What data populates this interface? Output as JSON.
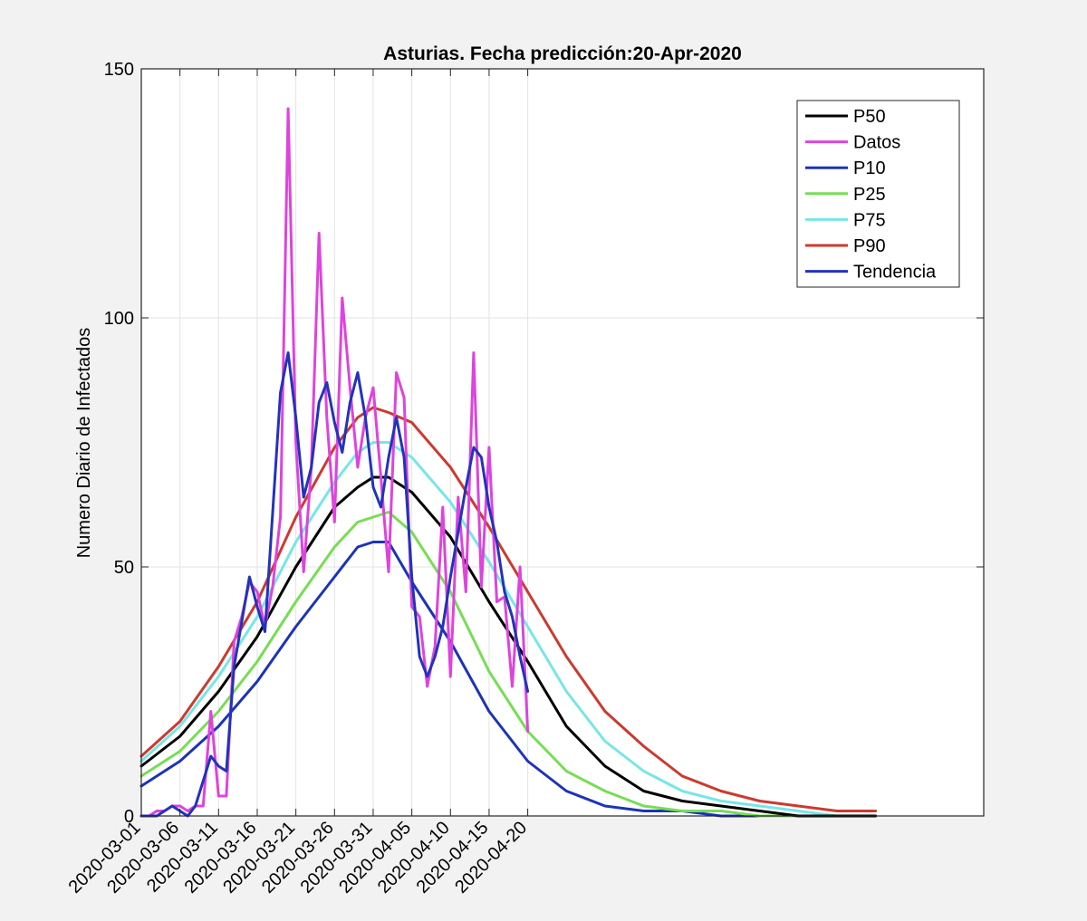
{
  "chart_data": {
    "type": "line",
    "title": "Asturias. Fecha predicción:20-Apr-2020",
    "xlabel": "",
    "ylabel": "Numero Diario de Infectados",
    "ylim": [
      0,
      150
    ],
    "yticks": [
      0,
      50,
      100,
      150
    ],
    "xlim": [
      "2020-03-01",
      "2020-06-18"
    ],
    "xticks": [
      "2020-03-01",
      "2020-03-06",
      "2020-03-11",
      "2020-03-16",
      "2020-03-21",
      "2020-03-26",
      "2020-03-31",
      "2020-04-05",
      "2020-04-10",
      "2020-04-15",
      "2020-04-20"
    ],
    "grid": "x-ticks and y-ticks",
    "legend_position": "top-right",
    "series": [
      {
        "name": "P50",
        "color": "#000000",
        "points": [
          [
            "2020-03-01",
            10
          ],
          [
            "2020-03-06",
            16
          ],
          [
            "2020-03-11",
            25
          ],
          [
            "2020-03-16",
            36
          ],
          [
            "2020-03-21",
            50
          ],
          [
            "2020-03-26",
            62
          ],
          [
            "2020-03-29",
            66
          ],
          [
            "2020-03-31",
            68
          ],
          [
            "2020-04-02",
            68
          ],
          [
            "2020-04-05",
            65
          ],
          [
            "2020-04-10",
            56
          ],
          [
            "2020-04-15",
            43
          ],
          [
            "2020-04-20",
            31
          ],
          [
            "2020-04-25",
            18
          ],
          [
            "2020-04-30",
            10
          ],
          [
            "2020-05-05",
            5
          ],
          [
            "2020-05-10",
            3
          ],
          [
            "2020-05-15",
            2
          ],
          [
            "2020-05-20",
            1
          ],
          [
            "2020-05-25",
            0
          ],
          [
            "2020-06-04",
            0
          ]
        ]
      },
      {
        "name": " Datos",
        "color": "#dd44dd",
        "points": [
          [
            "2020-03-01",
            0
          ],
          [
            "2020-03-02",
            0
          ],
          [
            "2020-03-03",
            1
          ],
          [
            "2020-03-04",
            1
          ],
          [
            "2020-03-05",
            2
          ],
          [
            "2020-03-06",
            2
          ],
          [
            "2020-03-07",
            1
          ],
          [
            "2020-03-08",
            2
          ],
          [
            "2020-03-09",
            2
          ],
          [
            "2020-03-10",
            21
          ],
          [
            "2020-03-11",
            4
          ],
          [
            "2020-03-12",
            4
          ],
          [
            "2020-03-13",
            35
          ],
          [
            "2020-03-14",
            40
          ],
          [
            "2020-03-15",
            47
          ],
          [
            "2020-03-16",
            45
          ],
          [
            "2020-03-17",
            38
          ],
          [
            "2020-03-18",
            46
          ],
          [
            "2020-03-19",
            60
          ],
          [
            "2020-03-20",
            142
          ],
          [
            "2020-03-21",
            75
          ],
          [
            "2020-03-22",
            49
          ],
          [
            "2020-03-23",
            70
          ],
          [
            "2020-03-24",
            117
          ],
          [
            "2020-03-25",
            80
          ],
          [
            "2020-03-26",
            59
          ],
          [
            "2020-03-27",
            104
          ],
          [
            "2020-03-28",
            86
          ],
          [
            "2020-03-29",
            70
          ],
          [
            "2020-03-30",
            80
          ],
          [
            "2020-03-31",
            86
          ],
          [
            "2020-04-01",
            68
          ],
          [
            "2020-04-02",
            49
          ],
          [
            "2020-04-03",
            89
          ],
          [
            "2020-04-04",
            84
          ],
          [
            "2020-04-05",
            42
          ],
          [
            "2020-04-06",
            40
          ],
          [
            "2020-04-07",
            26
          ],
          [
            "2020-04-08",
            34
          ],
          [
            "2020-04-09",
            62
          ],
          [
            "2020-04-10",
            28
          ],
          [
            "2020-04-11",
            64
          ],
          [
            "2020-04-12",
            45
          ],
          [
            "2020-04-13",
            93
          ],
          [
            "2020-04-14",
            46
          ],
          [
            "2020-04-15",
            74
          ],
          [
            "2020-04-16",
            43
          ],
          [
            "2020-04-17",
            44
          ],
          [
            "2020-04-18",
            26
          ],
          [
            "2020-04-19",
            50
          ],
          [
            "2020-04-20",
            17
          ]
        ]
      },
      {
        "name": "P10",
        "color": "#1c33b8",
        "points": [
          [
            "2020-03-01",
            6
          ],
          [
            "2020-03-06",
            11
          ],
          [
            "2020-03-11",
            18
          ],
          [
            "2020-03-16",
            27
          ],
          [
            "2020-03-21",
            38
          ],
          [
            "2020-03-26",
            48
          ],
          [
            "2020-03-29",
            54
          ],
          [
            "2020-03-31",
            55
          ],
          [
            "2020-04-02",
            55
          ],
          [
            "2020-04-05",
            47
          ],
          [
            "2020-04-10",
            35
          ],
          [
            "2020-04-15",
            21
          ],
          [
            "2020-04-20",
            11
          ],
          [
            "2020-04-25",
            5
          ],
          [
            "2020-04-30",
            2
          ],
          [
            "2020-05-05",
            1
          ],
          [
            "2020-05-10",
            1
          ],
          [
            "2020-05-15",
            0
          ],
          [
            "2020-05-25",
            0
          ]
        ]
      },
      {
        "name": "P25",
        "color": "#77dd55",
        "points": [
          [
            "2020-03-01",
            8
          ],
          [
            "2020-03-06",
            13
          ],
          [
            "2020-03-11",
            21
          ],
          [
            "2020-03-16",
            31
          ],
          [
            "2020-03-21",
            43
          ],
          [
            "2020-03-26",
            54
          ],
          [
            "2020-03-29",
            59
          ],
          [
            "2020-03-31",
            60
          ],
          [
            "2020-04-02",
            61
          ],
          [
            "2020-04-05",
            57
          ],
          [
            "2020-04-10",
            45
          ],
          [
            "2020-04-15",
            29
          ],
          [
            "2020-04-20",
            17
          ],
          [
            "2020-04-25",
            9
          ],
          [
            "2020-04-30",
            5
          ],
          [
            "2020-05-05",
            2
          ],
          [
            "2020-05-10",
            1
          ],
          [
            "2020-05-15",
            1
          ],
          [
            "2020-05-20",
            0
          ],
          [
            "2020-06-01",
            0
          ]
        ]
      },
      {
        "name": "P75",
        "color": "#77e6e6",
        "points": [
          [
            "2020-03-01",
            11
          ],
          [
            "2020-03-06",
            18
          ],
          [
            "2020-03-11",
            28
          ],
          [
            "2020-03-16",
            40
          ],
          [
            "2020-03-21",
            55
          ],
          [
            "2020-03-26",
            67
          ],
          [
            "2020-03-29",
            73
          ],
          [
            "2020-03-31",
            75
          ],
          [
            "2020-04-02",
            75
          ],
          [
            "2020-04-05",
            72
          ],
          [
            "2020-04-10",
            63
          ],
          [
            "2020-04-15",
            51
          ],
          [
            "2020-04-20",
            38
          ],
          [
            "2020-04-25",
            25
          ],
          [
            "2020-04-30",
            15
          ],
          [
            "2020-05-05",
            9
          ],
          [
            "2020-05-10",
            5
          ],
          [
            "2020-05-15",
            3
          ],
          [
            "2020-05-20",
            2
          ],
          [
            "2020-05-25",
            1
          ],
          [
            "2020-05-30",
            0
          ],
          [
            "2020-06-04",
            0
          ]
        ]
      },
      {
        "name": "P90",
        "color": "#cc3a2e",
        "points": [
          [
            "2020-03-01",
            12
          ],
          [
            "2020-03-06",
            19
          ],
          [
            "2020-03-11",
            30
          ],
          [
            "2020-03-16",
            43
          ],
          [
            "2020-03-21",
            60
          ],
          [
            "2020-03-26",
            74
          ],
          [
            "2020-03-29",
            80
          ],
          [
            "2020-03-31",
            82
          ],
          [
            "2020-04-02",
            81
          ],
          [
            "2020-04-05",
            79
          ],
          [
            "2020-04-10",
            70
          ],
          [
            "2020-04-15",
            58
          ],
          [
            "2020-04-20",
            45
          ],
          [
            "2020-04-25",
            32
          ],
          [
            "2020-04-30",
            21
          ],
          [
            "2020-05-05",
            14
          ],
          [
            "2020-05-10",
            8
          ],
          [
            "2020-05-15",
            5
          ],
          [
            "2020-05-20",
            3
          ],
          [
            "2020-05-25",
            2
          ],
          [
            "2020-05-30",
            1
          ],
          [
            "2020-06-04",
            1
          ]
        ]
      },
      {
        "name": "Tendencia",
        "color": "#2233bb",
        "points": [
          [
            "2020-03-01",
            0
          ],
          [
            "2020-03-03",
            0
          ],
          [
            "2020-03-05",
            2
          ],
          [
            "2020-03-07",
            0
          ],
          [
            "2020-03-08",
            2
          ],
          [
            "2020-03-10",
            12
          ],
          [
            "2020-03-11",
            10
          ],
          [
            "2020-03-12",
            9
          ],
          [
            "2020-03-13",
            30
          ],
          [
            "2020-03-15",
            48
          ],
          [
            "2020-03-16",
            42
          ],
          [
            "2020-03-17",
            37
          ],
          [
            "2020-03-19",
            85
          ],
          [
            "2020-03-20",
            93
          ],
          [
            "2020-03-21",
            80
          ],
          [
            "2020-03-22",
            64
          ],
          [
            "2020-03-23",
            70
          ],
          [
            "2020-03-24",
            83
          ],
          [
            "2020-03-25",
            87
          ],
          [
            "2020-03-26",
            79
          ],
          [
            "2020-03-27",
            73
          ],
          [
            "2020-03-28",
            83
          ],
          [
            "2020-03-29",
            89
          ],
          [
            "2020-03-30",
            80
          ],
          [
            "2020-03-31",
            66
          ],
          [
            "2020-04-01",
            62
          ],
          [
            "2020-04-02",
            72
          ],
          [
            "2020-04-03",
            80
          ],
          [
            "2020-04-04",
            72
          ],
          [
            "2020-04-05",
            48
          ],
          [
            "2020-04-06",
            32
          ],
          [
            "2020-04-07",
            28
          ],
          [
            "2020-04-08",
            32
          ],
          [
            "2020-04-09",
            38
          ],
          [
            "2020-04-10",
            48
          ],
          [
            "2020-04-11",
            57
          ],
          [
            "2020-04-12",
            66
          ],
          [
            "2020-04-13",
            74
          ],
          [
            "2020-04-14",
            72
          ],
          [
            "2020-04-15",
            62
          ],
          [
            "2020-04-16",
            55
          ],
          [
            "2020-04-17",
            45
          ],
          [
            "2020-04-18",
            40
          ],
          [
            "2020-04-19",
            32
          ],
          [
            "2020-04-20",
            25
          ]
        ]
      }
    ]
  }
}
